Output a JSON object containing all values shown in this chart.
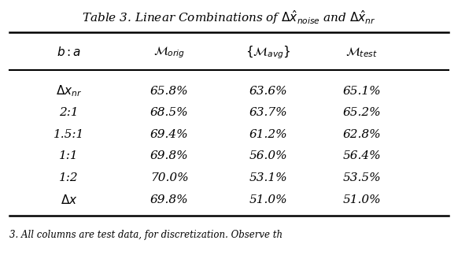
{
  "title": "Table 3. Linear Combinations of $\\Delta\\hat{x}_{noise}$ and $\\Delta\\hat{x}_{nr}$",
  "col_headers": [
    "$b:a$",
    "$\\mathcal{M}_{orig}$",
    "$\\{\\mathcal{M}_{avg}\\}$",
    "$\\mathcal{M}_{test}$"
  ],
  "rows": [
    [
      "$\\Delta x_{nr}$",
      "65.8%",
      "63.6%",
      "65.1%"
    ],
    [
      "2:1",
      "68.5%",
      "63.7%",
      "65.2%"
    ],
    [
      "1.5:1",
      "69.4%",
      "61.2%",
      "62.8%"
    ],
    [
      "1:1",
      "69.8%",
      "56.0%",
      "56.4%"
    ],
    [
      "1:2",
      "70.0%",
      "53.1%",
      "53.5%"
    ],
    [
      "$\\Delta x$",
      "69.8%",
      "51.0%",
      "51.0%"
    ]
  ],
  "bg_color": "#ffffff",
  "text_color": "#000000",
  "title_fontsize": 11,
  "header_fontsize": 11,
  "cell_fontsize": 11,
  "bottom_caption": "3. All columns are test data, for discretization. Observe th"
}
